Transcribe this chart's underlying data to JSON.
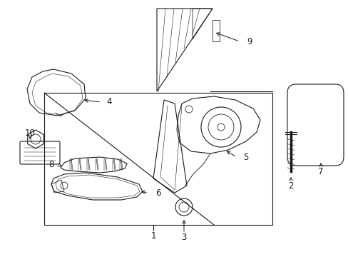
{
  "bg_color": "#ffffff",
  "line_color": "#1a1a1a",
  "fig_width": 4.89,
  "fig_height": 3.6,
  "dpi": 100,
  "label_fs": 8.5,
  "lw": 0.8
}
